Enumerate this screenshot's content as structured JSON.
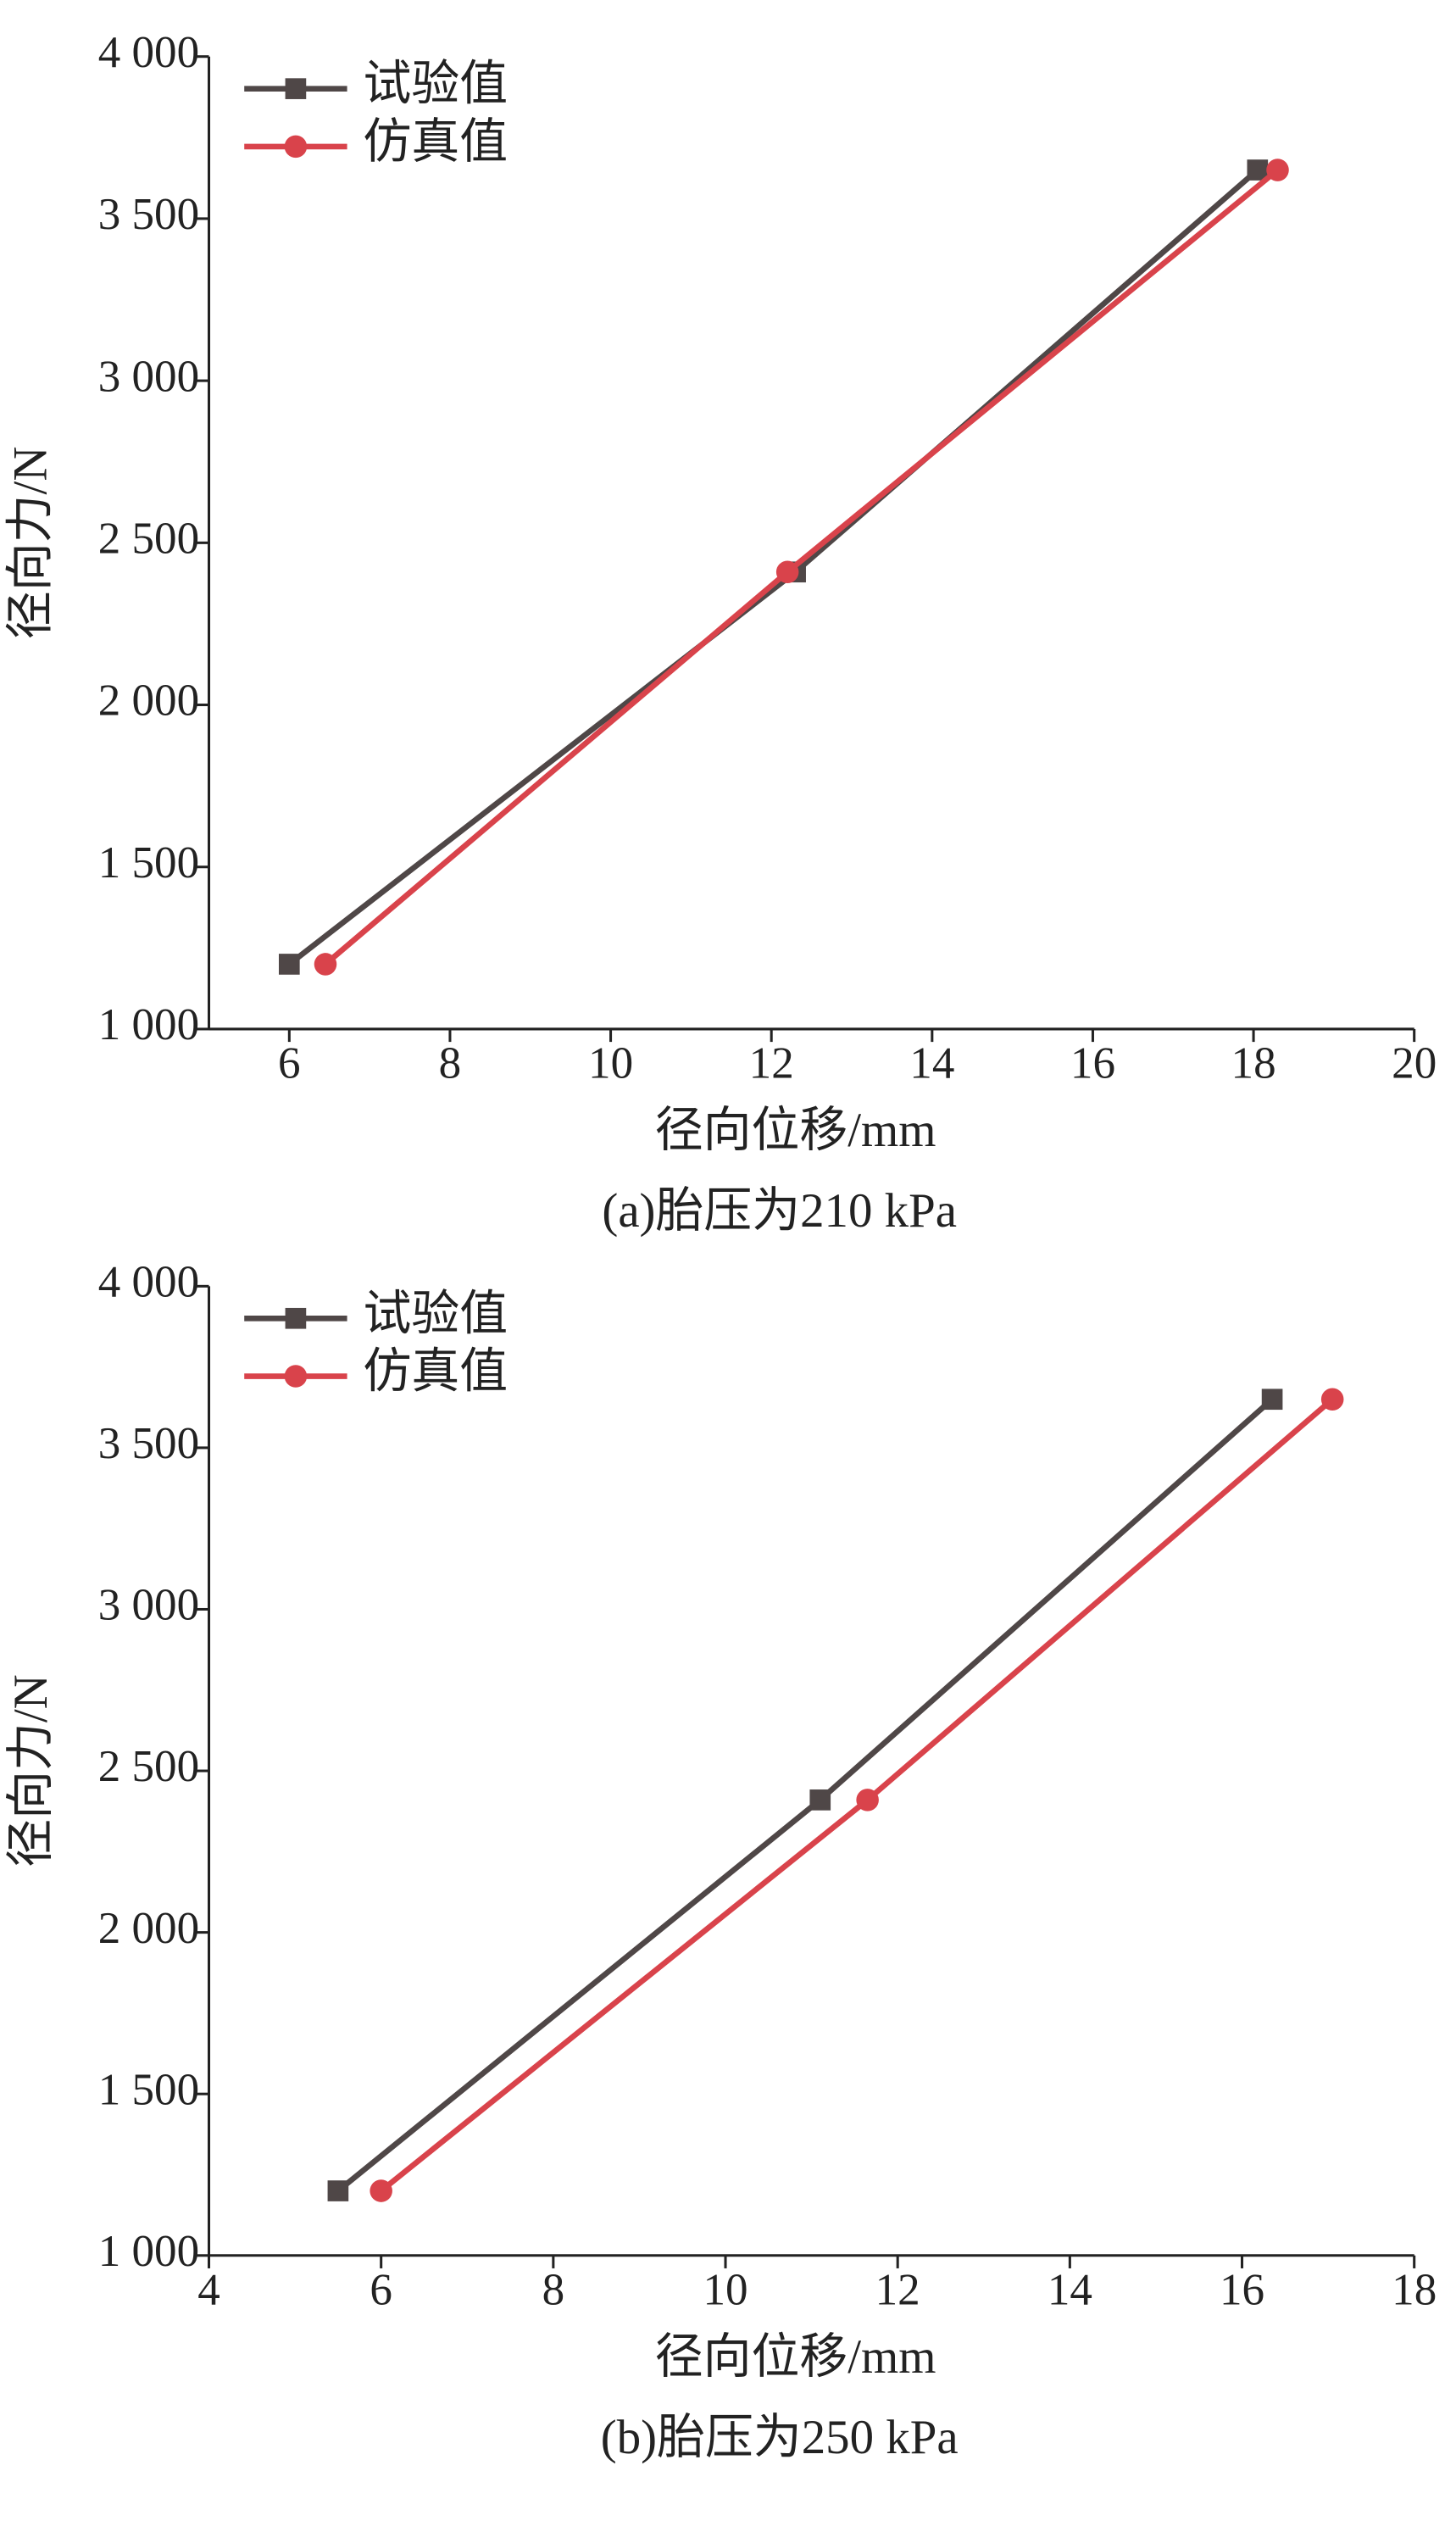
{
  "chart_data": [
    {
      "type": "line",
      "caption": "(a)胎压为210 kPa",
      "xlabel": "径向位移/mm",
      "ylabel": "径向力/N",
      "xlim": [
        5,
        20
      ],
      "xticks": [
        6,
        8,
        10,
        12,
        14,
        16,
        18,
        20
      ],
      "ylim": [
        1000,
        4000
      ],
      "yticks": [
        {
          "value": 1000,
          "label": "1 000"
        },
        {
          "value": 1500,
          "label": "1 500"
        },
        {
          "value": 2000,
          "label": "2 000"
        },
        {
          "value": 2500,
          "label": "2 500"
        },
        {
          "value": 3000,
          "label": "3 000"
        },
        {
          "value": 3500,
          "label": "3 500"
        },
        {
          "value": 4000,
          "label": "4 000"
        }
      ],
      "legend": "upper left",
      "series": [
        {
          "name": "试验值",
          "color": "#4f4747",
          "marker": "square",
          "x": [
            6,
            12.3,
            18.05
          ],
          "values": [
            1200,
            2410,
            3650
          ]
        },
        {
          "name": "仿真值",
          "color": "#d9434b",
          "marker": "circle",
          "x": [
            6.45,
            12.2,
            18.3
          ],
          "values": [
            1200,
            2410,
            3650
          ]
        }
      ]
    },
    {
      "type": "line",
      "caption": "(b)胎压为250 kPa",
      "xlabel": "径向位移/mm",
      "ylabel": "径向力/N",
      "xlim": [
        4,
        18
      ],
      "xticks": [
        4,
        6,
        8,
        10,
        12,
        14,
        16,
        18
      ],
      "ylim": [
        1000,
        4000
      ],
      "yticks": [
        {
          "value": 1000,
          "label": "1 000"
        },
        {
          "value": 1500,
          "label": "1 500"
        },
        {
          "value": 2000,
          "label": "2 000"
        },
        {
          "value": 2500,
          "label": "2 500"
        },
        {
          "value": 3000,
          "label": "3 000"
        },
        {
          "value": 3500,
          "label": "3 500"
        },
        {
          "value": 4000,
          "label": "4 000"
        }
      ],
      "legend": "upper left",
      "series": [
        {
          "name": "试验值",
          "color": "#4f4747",
          "marker": "square",
          "x": [
            5.5,
            11.1,
            16.35
          ],
          "values": [
            1200,
            2410,
            3650
          ]
        },
        {
          "name": "仿真值",
          "color": "#d9434b",
          "marker": "circle",
          "x": [
            6,
            11.65,
            17.05
          ],
          "values": [
            1200,
            2410,
            3650
          ]
        }
      ]
    }
  ]
}
